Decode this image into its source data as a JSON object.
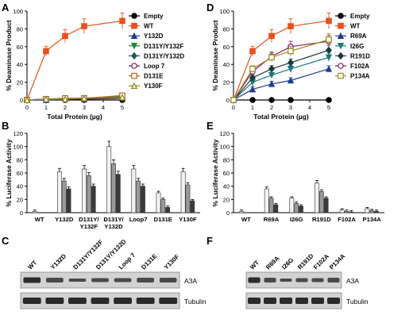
{
  "panels": {
    "A": {
      "letter": "A"
    },
    "B": {
      "letter": "B"
    },
    "C": {
      "letter": "C"
    },
    "D": {
      "letter": "D"
    },
    "E": {
      "letter": "E"
    },
    "F": {
      "letter": "F"
    }
  },
  "blot_labels": {
    "a3a": "A3A",
    "tubulin": "Tubulin"
  },
  "blot_lanes_left": [
    "WT",
    "Y132D",
    "D131Y/Y132F",
    "D131Y/Y132D",
    "Loop 7",
    "D131E",
    "Y130F"
  ],
  "blot_lanes_right": [
    "WT",
    "R69A",
    "I26G",
    "R191D",
    "F102A",
    "P134A"
  ],
  "chart_data": [
    {
      "id": "A",
      "type": "line",
      "xlabel": "Total Protein (µg)",
      "ylabel": "% Deaminase Product",
      "xlim": [
        0,
        5
      ],
      "ylim": [
        0,
        100
      ],
      "xticks": [
        0,
        1,
        2,
        3,
        4,
        5
      ],
      "yticks": [
        0,
        20,
        40,
        60,
        80,
        100
      ],
      "legend_position": "right",
      "x": [
        0,
        1,
        2,
        3,
        5
      ],
      "series": [
        {
          "name": "Empty",
          "color": "#000000",
          "marker": "circle-filled",
          "values": [
            0,
            0,
            0,
            0,
            0
          ]
        },
        {
          "name": "WT",
          "color": "#e8501c",
          "marker": "square-filled",
          "values": [
            0,
            55,
            72,
            83,
            89
          ]
        },
        {
          "name": "Y132D",
          "color": "#1f3a93",
          "marker": "triangle-filled",
          "values": [
            0,
            0,
            1,
            1,
            3
          ]
        },
        {
          "name": "D131Y/Y132F",
          "color": "#1a8a3a",
          "marker": "triangle-down-filled",
          "values": [
            0,
            1,
            1,
            2,
            4
          ]
        },
        {
          "name": "D131Y/Y132D",
          "color": "#1a5a5a",
          "marker": "diamond-filled",
          "values": [
            0,
            0,
            1,
            1,
            2
          ]
        },
        {
          "name": "Loop 7",
          "color": "#7a1a5a",
          "marker": "circle-open",
          "values": [
            0,
            1,
            1,
            1,
            2
          ]
        },
        {
          "name": "D131E",
          "color": "#b06a1a",
          "marker": "square-open",
          "values": [
            0,
            1,
            2,
            2,
            5
          ]
        },
        {
          "name": "Y130F",
          "color": "#8a8a1a",
          "marker": "triangle-open",
          "values": [
            0,
            1,
            1,
            2,
            3
          ]
        }
      ]
    },
    {
      "id": "D",
      "type": "line",
      "xlabel": "Total Protein (µg)",
      "ylabel": "% Deaminase Product",
      "xlim": [
        0,
        5
      ],
      "ylim": [
        0,
        100
      ],
      "xticks": [
        0,
        1,
        2,
        3,
        4,
        5
      ],
      "yticks": [
        0,
        20,
        40,
        60,
        80,
        100
      ],
      "legend_position": "right",
      "x": [
        0,
        1,
        2,
        3,
        5
      ],
      "series": [
        {
          "name": "Empty",
          "color": "#000000",
          "marker": "circle-filled",
          "values": [
            0,
            0,
            0,
            0,
            0
          ]
        },
        {
          "name": "WT",
          "color": "#e8501c",
          "marker": "square-filled",
          "values": [
            0,
            55,
            72,
            83,
            89
          ]
        },
        {
          "name": "R69A",
          "color": "#1f3a93",
          "marker": "triangle-filled",
          "values": [
            0,
            12,
            18,
            22,
            35
          ]
        },
        {
          "name": "I26G",
          "color": "#1a7a7a",
          "marker": "triangle-down-filled",
          "values": [
            0,
            20,
            28,
            35,
            48
          ]
        },
        {
          "name": "R191D",
          "color": "#1a3a3a",
          "marker": "diamond-filled",
          "values": [
            0,
            25,
            35,
            42,
            56
          ]
        },
        {
          "name": "F102A",
          "color": "#8a1a6a",
          "marker": "circle-open",
          "values": [
            0,
            32,
            49,
            60,
            66
          ]
        },
        {
          "name": "P134A",
          "color": "#9a8a1a",
          "marker": "square-open",
          "values": [
            0,
            35,
            48,
            55,
            68
          ]
        }
      ]
    },
    {
      "id": "B",
      "type": "bar",
      "ylabel": "% Luciferase Activity",
      "ylim": [
        0,
        120
      ],
      "yticks": [
        0,
        20,
        40,
        60,
        80,
        100,
        120
      ],
      "categories": [
        "WT",
        "Y132D",
        "D131Y/ Y132F",
        "D131Y/ Y132D",
        "Loop7",
        "D131E",
        "Y130F"
      ],
      "series": [
        {
          "values": [
            2,
            62,
            66,
            100,
            66,
            30,
            62
          ]
        },
        {
          "values": [
            0,
            48,
            56,
            74,
            48,
            20,
            42
          ]
        },
        {
          "values": [
            0,
            36,
            40,
            58,
            40,
            8,
            18
          ]
        }
      ]
    },
    {
      "id": "E",
      "type": "bar",
      "ylabel": "% Luciferase Activity",
      "ylim": [
        0,
        120
      ],
      "yticks": [
        0,
        20,
        40,
        60,
        80,
        100,
        120
      ],
      "categories": [
        "WT",
        "R69A",
        "I26G",
        "R191D",
        "F102A",
        "P134A"
      ],
      "series": [
        {
          "values": [
            2,
            36,
            22,
            45,
            4,
            6
          ]
        },
        {
          "values": [
            0,
            22,
            14,
            32,
            2,
            3
          ]
        },
        {
          "values": [
            0,
            12,
            10,
            22,
            1,
            2
          ]
        }
      ]
    }
  ]
}
